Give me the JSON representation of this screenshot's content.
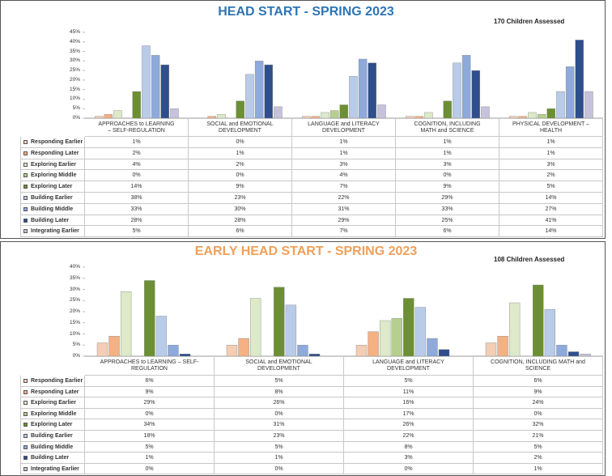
{
  "chart_data": [
    {
      "type": "bar",
      "title": "HEAD START - SPRING 2023",
      "annotation": "170 Children Assessed",
      "categories": [
        "APPROACHES to LEARNING – SELF-REGULATION",
        "SOCIAL and EMOTIONAL DEVELOPMENT",
        "LANGUAGE and LITERACY DEVELOPMENT",
        "COGNITION, INCLUDING MATH and SCIENCE",
        "PHYSICAL DEVELOPMENT – HEALTH"
      ],
      "ylim": [
        0,
        45
      ],
      "yticks": [
        {
          "value": 0,
          "label": "0%"
        },
        {
          "value": 5,
          "label": "5%"
        },
        {
          "value": 10,
          "label": "10%"
        },
        {
          "value": 15,
          "label": "15%"
        },
        {
          "value": 20,
          "label": "20%"
        },
        {
          "value": 25,
          "label": "25%"
        },
        {
          "value": 30,
          "label": "30%"
        },
        {
          "value": 35,
          "label": "35%"
        },
        {
          "value": 40,
          "label": "40%"
        },
        {
          "value": 45,
          "label": "45%"
        }
      ],
      "series": [
        {
          "name": "Responding Earlier",
          "color": "#f3cdb4",
          "values": [
            1,
            0,
            1,
            1,
            1
          ],
          "value_labels": [
            "1%",
            "0%",
            "1%",
            "1%",
            "1%"
          ]
        },
        {
          "name": "Responding Later",
          "color": "#f4b183",
          "values": [
            2,
            1,
            1,
            1,
            1
          ],
          "value_labels": [
            "2%",
            "1%",
            "1%",
            "1%",
            "1%"
          ]
        },
        {
          "name": "Exploring Earlier",
          "color": "#dde9c8",
          "values": [
            4,
            2,
            3,
            3,
            3
          ],
          "value_labels": [
            "4%",
            "2%",
            "3%",
            "3%",
            "3%"
          ]
        },
        {
          "name": "Exploring Middle",
          "color": "#b5cf8f",
          "values": [
            0,
            0,
            4,
            0,
            2
          ],
          "value_labels": [
            "0%",
            "0%",
            "4%",
            "0%",
            "2%"
          ]
        },
        {
          "name": "Exploring Later",
          "color": "#6b8f32",
          "values": [
            14,
            9,
            7,
            9,
            5
          ],
          "value_labels": [
            "14%",
            "9%",
            "7%",
            "9%",
            "5%"
          ]
        },
        {
          "name": "Building Earlier",
          "color": "#b8cbe8",
          "values": [
            38,
            23,
            22,
            29,
            14
          ],
          "value_labels": [
            "38%",
            "23%",
            "22%",
            "29%",
            "14%"
          ]
        },
        {
          "name": "Building Middle",
          "color": "#8eaadb",
          "values": [
            33,
            30,
            31,
            33,
            27
          ],
          "value_labels": [
            "33%",
            "30%",
            "31%",
            "33%",
            "27%"
          ]
        },
        {
          "name": "Building Later",
          "color": "#2e4e8c",
          "values": [
            28,
            28,
            29,
            25,
            41
          ],
          "value_labels": [
            "28%",
            "28%",
            "29%",
            "25%",
            "41%"
          ]
        },
        {
          "name": "Integrating Earlier",
          "color": "#c7c2dc",
          "values": [
            5,
            6,
            7,
            6,
            14
          ],
          "value_labels": [
            "5%",
            "6%",
            "7%",
            "6%",
            "14%"
          ]
        }
      ],
      "title_color": "#2e75b6"
    },
    {
      "type": "bar",
      "title": "EARLY HEAD START - SPRING 2023",
      "annotation": "108 Children Assessed",
      "categories": [
        "APPROACHES to LEARNING – SELF-REGULATION",
        "SOCIAL and EMOTIONAL DEVELOPMENT",
        "LANGUAGE and LITERACY DEVELOPMENT",
        "COGNITION, INCLUDING MATH and SCIENCE"
      ],
      "ylim": [
        0,
        40
      ],
      "yticks": [
        {
          "value": 0,
          "label": "0%"
        },
        {
          "value": 5,
          "label": "5%"
        },
        {
          "value": 10,
          "label": "10%"
        },
        {
          "value": 15,
          "label": "15%"
        },
        {
          "value": 20,
          "label": "20%"
        },
        {
          "value": 25,
          "label": "25%"
        },
        {
          "value": 30,
          "label": "30%"
        },
        {
          "value": 35,
          "label": "35%"
        },
        {
          "value": 40,
          "label": "40%"
        }
      ],
      "series": [
        {
          "name": "Responding Earlier",
          "color": "#f3cdb4",
          "values": [
            6,
            5,
            5,
            6
          ],
          "value_labels": [
            "6%",
            "5%",
            "5%",
            "6%"
          ]
        },
        {
          "name": "Responding Later",
          "color": "#f4b183",
          "values": [
            9,
            8,
            11,
            9
          ],
          "value_labels": [
            "9%",
            "8%",
            "11%",
            "9%"
          ]
        },
        {
          "name": "Exploring Earlier",
          "color": "#dde9c8",
          "values": [
            29,
            26,
            16,
            24
          ],
          "value_labels": [
            "29%",
            "26%",
            "16%",
            "24%"
          ]
        },
        {
          "name": "Exploring Middle",
          "color": "#b5cf8f",
          "values": [
            0,
            0,
            17,
            0
          ],
          "value_labels": [
            "0%",
            "0%",
            "17%",
            "0%"
          ]
        },
        {
          "name": "Exploring Later",
          "color": "#6b8f32",
          "values": [
            34,
            31,
            26,
            32
          ],
          "value_labels": [
            "34%",
            "31%",
            "26%",
            "32%"
          ]
        },
        {
          "name": "Building Earlier",
          "color": "#b8cbe8",
          "values": [
            18,
            23,
            22,
            21
          ],
          "value_labels": [
            "18%",
            "23%",
            "22%",
            "21%"
          ]
        },
        {
          "name": "Building Middle",
          "color": "#8eaadb",
          "values": [
            5,
            5,
            8,
            5
          ],
          "value_labels": [
            "5%",
            "5%",
            "8%",
            "5%"
          ]
        },
        {
          "name": "Building Later",
          "color": "#2e4e8c",
          "values": [
            1,
            1,
            3,
            2
          ],
          "value_labels": [
            "1%",
            "1%",
            "3%",
            "2%"
          ]
        },
        {
          "name": "Integrating Earlier",
          "color": "#c7c2dc",
          "values": [
            0,
            0,
            0,
            1
          ],
          "value_labels": [
            "0%",
            "0%",
            "0%",
            "1%"
          ]
        }
      ],
      "title_color": "#f0a05a"
    }
  ]
}
